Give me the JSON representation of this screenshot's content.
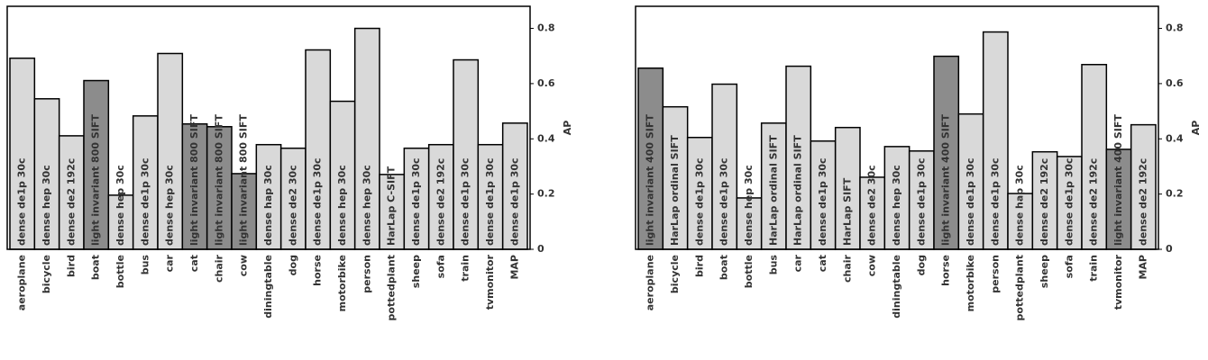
{
  "chart_data": [
    {
      "type": "bar",
      "ylabel": "AP",
      "ylim": [
        0,
        0.88
      ],
      "yticks": [
        0,
        0.2,
        0.4,
        0.6,
        0.8
      ],
      "categories": [
        "aeroplane",
        "bicycle",
        "bird",
        "boat",
        "bottle",
        "bus",
        "car",
        "cat",
        "chair",
        "cow",
        "diningtable",
        "dog",
        "horse",
        "motorbike",
        "person",
        "pottedplant",
        "sheep",
        "sofa",
        "train",
        "tvmonitor",
        "MAP"
      ],
      "values": [
        0.692,
        0.545,
        0.411,
        0.611,
        0.196,
        0.483,
        0.709,
        0.454,
        0.444,
        0.274,
        0.379,
        0.366,
        0.722,
        0.536,
        0.8,
        0.271,
        0.366,
        0.379,
        0.686,
        0.379,
        0.457
      ],
      "bar_labels": [
        "dense de1p 30c",
        "dense hep 30c",
        "dense de2 192c",
        "light invariant 800 SIFT",
        "dense hep 30c",
        "dense de1p 30c",
        "dense hep 30c",
        "light invariant 800 SIFT",
        "light invariant 800 SIFT",
        "light invariant 800 SIFT",
        "dense hap 30c",
        "dense de2 30c",
        "dense de1p 30c",
        "dense hep 30c",
        "dense hep 30c",
        "HarLap C-SIFT",
        "dense de1p 30c",
        "dense de2 192c",
        "dense de1p 30c",
        "dense de1p 30c",
        "dense de1p 30c"
      ],
      "colors": [
        "#d9d9d9",
        "#d9d9d9",
        "#d9d9d9",
        "#8c8c8c",
        "#d9d9d9",
        "#d9d9d9",
        "#d9d9d9",
        "#8c8c8c",
        "#8c8c8c",
        "#8c8c8c",
        "#d9d9d9",
        "#d9d9d9",
        "#d9d9d9",
        "#d9d9d9",
        "#d9d9d9",
        "#d9d9d9",
        "#d9d9d9",
        "#d9d9d9",
        "#d9d9d9",
        "#d9d9d9",
        "#d9d9d9"
      ]
    },
    {
      "type": "bar",
      "ylabel": "AP",
      "ylim": [
        0,
        0.88
      ],
      "yticks": [
        0,
        0.2,
        0.4,
        0.6,
        0.8
      ],
      "categories": [
        "aeroplane",
        "bicycle",
        "bird",
        "boat",
        "bottle",
        "bus",
        "car",
        "cat",
        "chair",
        "cow",
        "diningtable",
        "dog",
        "horse",
        "motorbike",
        "person",
        "pottedplant",
        "sheep",
        "sofa",
        "train",
        "tvmonitor",
        "MAP"
      ],
      "values": [
        0.656,
        0.516,
        0.405,
        0.598,
        0.186,
        0.457,
        0.663,
        0.392,
        0.441,
        0.261,
        0.372,
        0.356,
        0.699,
        0.49,
        0.787,
        0.202,
        0.353,
        0.336,
        0.669,
        0.362,
        0.451
      ],
      "bar_labels": [
        "light invariant 400 SIFT",
        "HarLap ordinal SIFT",
        "dense de1p 30c",
        "dense de1p 30c",
        "dense hep 30c",
        "HarLap ordinal SIFT",
        "HarLap ordinal SIFT",
        "dense de1p 30c",
        "HarLap SIFT",
        "dense de2 30c",
        "dense hep 30c",
        "dense de1p 30c",
        "light invariant 400 SIFT",
        "dense de1p 30c",
        "dense de1p 30c",
        "dense hap 30c",
        "dense de2 192c",
        "dense de1p 30c",
        "dense de2 192c",
        "light invariant 400 SIFT",
        "dense de2 192c"
      ],
      "colors": [
        "#8c8c8c",
        "#d9d9d9",
        "#d9d9d9",
        "#d9d9d9",
        "#d9d9d9",
        "#d9d9d9",
        "#d9d9d9",
        "#d9d9d9",
        "#d9d9d9",
        "#d9d9d9",
        "#d9d9d9",
        "#d9d9d9",
        "#8c8c8c",
        "#d9d9d9",
        "#d9d9d9",
        "#d9d9d9",
        "#d9d9d9",
        "#d9d9d9",
        "#d9d9d9",
        "#8c8c8c",
        "#d9d9d9"
      ]
    }
  ]
}
